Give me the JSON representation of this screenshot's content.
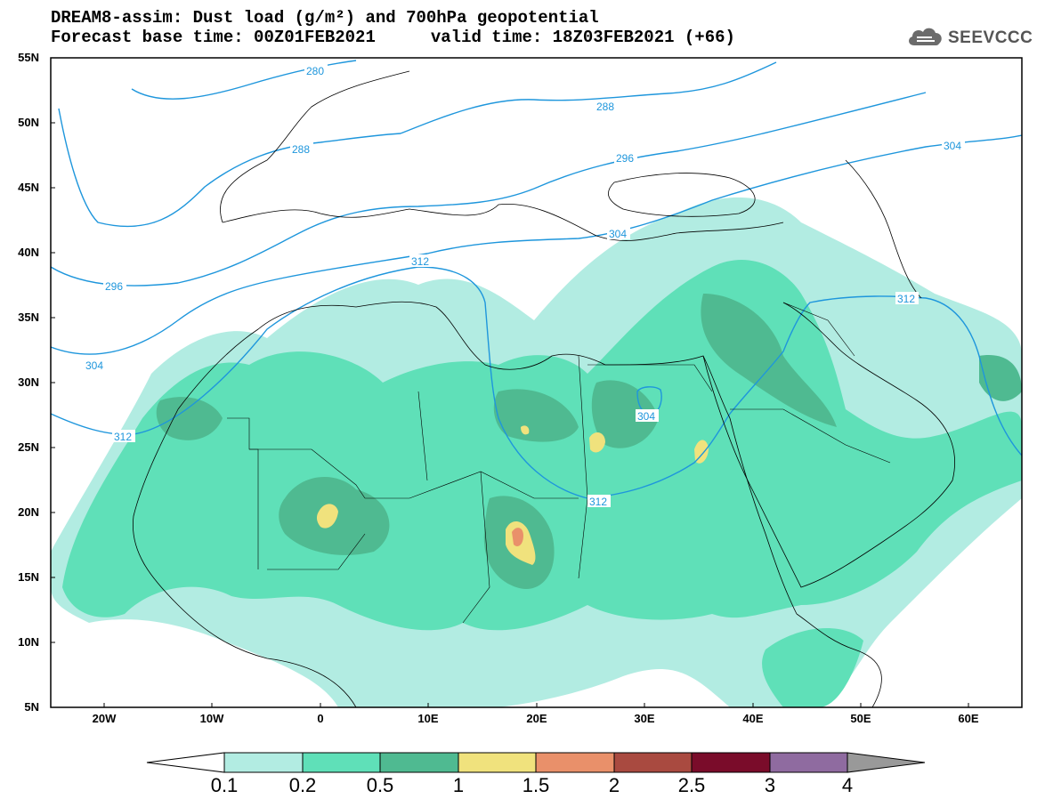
{
  "title": {
    "line1": "DREAM8-assim: Dust load (g/m²) and 700hPa geopotential",
    "base_time_label": "Forecast base time: 00Z01FEB2021",
    "valid_time_label": "valid time: 18Z03FEB2021 (+66)"
  },
  "logo": {
    "text": "SEEVCCC",
    "icon": "cloud-icon"
  },
  "map": {
    "projection": "lat-lon",
    "lon_range": [
      -25,
      65
    ],
    "lat_range": [
      5,
      55
    ],
    "lat_labels": [
      "55N",
      "50N",
      "45N",
      "40N",
      "35N",
      "30N",
      "25N",
      "20N",
      "15N",
      "10N",
      "5N"
    ],
    "lon_labels": [
      "20W",
      "10W",
      "0",
      "10E",
      "20E",
      "30E",
      "40E",
      "50E",
      "60E"
    ],
    "contour_labels": [
      "280",
      "288",
      "288",
      "296",
      "296",
      "304",
      "304",
      "304",
      "304",
      "312",
      "312",
      "312",
      "312"
    ],
    "contour_color": "#1e96dc"
  },
  "colorbar": {
    "levels": [
      "0.1",
      "0.2",
      "0.5",
      "1",
      "1.5",
      "2",
      "2.5",
      "3",
      "4"
    ],
    "colors": [
      "#b2ece2",
      "#5fe0b8",
      "#4fba91",
      "#f0e27d",
      "#e9906a",
      "#a94a40",
      "#7a0c2a",
      "#8f6ba0"
    ],
    "under_color": "#ffffff",
    "over_color": "#999999"
  }
}
